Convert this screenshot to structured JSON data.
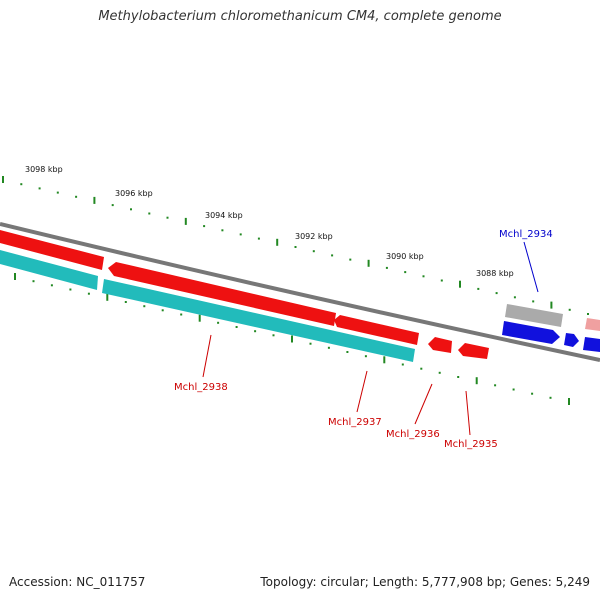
{
  "title": "Methylobacterium chloromethanicum CM4, complete genome",
  "footer": {
    "accession": "Accession: NC_011757",
    "summary": "Topology: circular; Length: 5,777,908 bp; Genes: 5,249"
  },
  "colors": {
    "backbone": "#777777",
    "tick": "#228822",
    "forward_gene": "#ee1111",
    "forward_gene_light": "#f0a0a0",
    "reverse_gene": "#22bbbb",
    "blue_gene": "#1111dd",
    "rna_gene": "#aaaaaa",
    "label_red": "#cc0000",
    "label_blue": "#0000cc",
    "scale_text": "#111111"
  },
  "scale_labels": [
    "3098 kbp",
    "3096 kbp",
    "3094 kbp",
    "3092 kbp",
    "3090 kbp",
    "3088 kbp"
  ],
  "gene_labels": [
    {
      "text": "Mchl_2934",
      "color": "blue"
    },
    {
      "text": "Mchl_2938",
      "color": "red"
    },
    {
      "text": "Mchl_2937",
      "color": "red"
    },
    {
      "text": "Mchl_2936",
      "color": "red"
    },
    {
      "text": "Mchl_2935",
      "color": "red"
    }
  ]
}
